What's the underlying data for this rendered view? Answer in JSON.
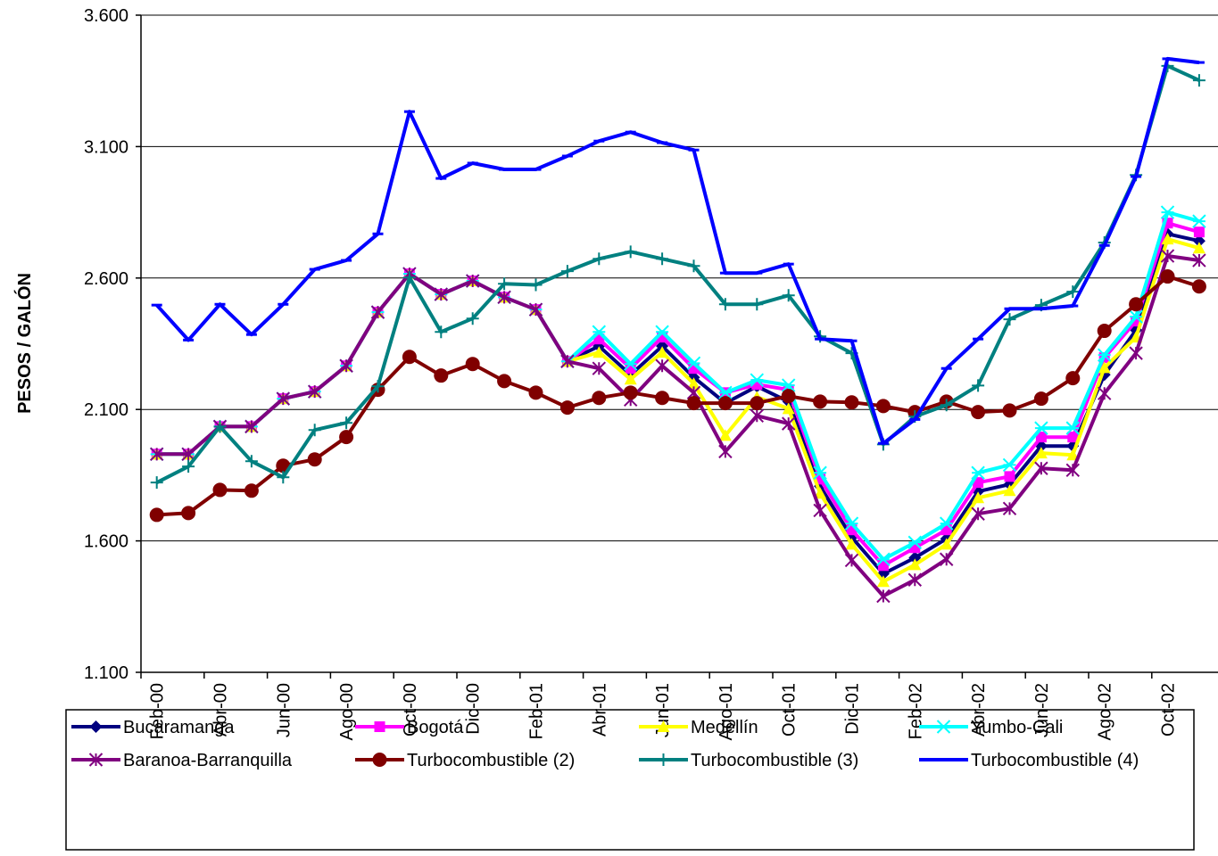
{
  "chart_data": {
    "type": "line",
    "y_label": "PESOS / GALÓN",
    "categories": [
      "Feb-00",
      null,
      "Abr-00",
      null,
      "Jun-00",
      null,
      "Ago-00",
      null,
      "Oct-00",
      null,
      "Dic-00",
      null,
      "Feb-01",
      null,
      "Abr-01",
      null,
      "Jun-01",
      null,
      "Ago-01",
      null,
      "Oct-01",
      null,
      "Dic-01",
      null,
      "Feb-02",
      null,
      "Abr-02",
      null,
      "Jun-02",
      null,
      "Ago-02",
      null,
      "Oct-02",
      null
    ],
    "ylim": [
      1100,
      3600
    ],
    "yticks": [
      {
        "value": 1100,
        "label": "1.100"
      },
      {
        "value": 1600,
        "label": "1.600"
      },
      {
        "value": 2100,
        "label": "2.100"
      },
      {
        "value": 2600,
        "label": "2.600"
      },
      {
        "value": 3100,
        "label": "3.100"
      },
      {
        "value": 3600,
        "label": "3.600"
      }
    ],
    "grid": true,
    "legend": "bottom",
    "series": [
      {
        "name": "Bucaramanga",
        "color": "#000080",
        "marker": "diamond",
        "values": [
          1930,
          1930,
          2035,
          2035,
          2141,
          2168,
          2266,
          2470,
          2616,
          2538,
          2589,
          2527,
          2480,
          2283,
          2341,
          2232,
          2341,
          2222,
          2124,
          2188,
          2130,
          1808,
          1614,
          1475,
          1536,
          1608,
          1788,
          1815,
          1961,
          1961,
          2232,
          2402,
          2768,
          2741
        ]
      },
      {
        "name": "Bogotá",
        "color": "#ff00ff",
        "marker": "square",
        "values": [
          1930,
          1930,
          2035,
          2035,
          2141,
          2168,
          2266,
          2470,
          2616,
          2538,
          2589,
          2527,
          2480,
          2283,
          2368,
          2256,
          2375,
          2256,
          2164,
          2195,
          2175,
          1835,
          1642,
          1506,
          1574,
          1642,
          1822,
          1845,
          1995,
          1995,
          2297,
          2436,
          2809,
          2775
        ]
      },
      {
        "name": "Medellín",
        "color": "#ffff00",
        "marker": "triangle",
        "values": [
          1930,
          1930,
          2035,
          2035,
          2141,
          2168,
          2266,
          2470,
          2616,
          2538,
          2589,
          2527,
          2480,
          2283,
          2317,
          2215,
          2317,
          2198,
          2001,
          2147,
          2103,
          1781,
          1587,
          1445,
          1509,
          1587,
          1764,
          1791,
          1934,
          1927,
          2259,
          2375,
          2748,
          2714
        ]
      },
      {
        "name": "Yumbo-Cali",
        "color": "#00ffff",
        "marker": "asterisk",
        "values": [
          1930,
          1930,
          2035,
          2035,
          2141,
          2168,
          2266,
          2470,
          2616,
          2538,
          2589,
          2527,
          2480,
          2283,
          2395,
          2273,
          2395,
          2276,
          2164,
          2212,
          2192,
          1859,
          1666,
          1530,
          1594,
          1666,
          1859,
          1889,
          2029,
          2029,
          2307,
          2453,
          2850,
          2816
        ]
      },
      {
        "name": "Baranoa-Barranquilla",
        "color": "#800080",
        "marker": "star",
        "values": [
          1930,
          1930,
          2035,
          2035,
          2141,
          2168,
          2266,
          2470,
          2616,
          2538,
          2589,
          2527,
          2480,
          2283,
          2256,
          2137,
          2266,
          2164,
          1940,
          2076,
          2046,
          1716,
          1526,
          1390,
          1452,
          1530,
          1703,
          1723,
          1876,
          1869,
          2161,
          2314,
          2684,
          2667
        ]
      },
      {
        "name": "Turbocombustible (2)",
        "color": "#800000",
        "marker": "circle",
        "values": [
          1699,
          1706,
          1794,
          1791,
          1886,
          1910,
          1995,
          2175,
          2300,
          2229,
          2273,
          2208,
          2164,
          2107,
          2144,
          2164,
          2144,
          2124,
          2124,
          2124,
          2151,
          2130,
          2127,
          2113,
          2090,
          2130,
          2090,
          2096,
          2141,
          2219,
          2399,
          2500,
          2606,
          2568
        ]
      },
      {
        "name": "Turbocombustible (3)",
        "color": "#008080",
        "marker": "plus",
        "values": [
          1822,
          1883,
          2035,
          1903,
          1842,
          2022,
          2049,
          2188,
          2602,
          2395,
          2446,
          2578,
          2574,
          2626,
          2673,
          2700,
          2673,
          2646,
          2500,
          2500,
          2534,
          2378,
          2314,
          1967,
          2073,
          2117,
          2191,
          2443,
          2497,
          2548,
          2735,
          2992,
          3407,
          3352
        ]
      },
      {
        "name": "Turbocombustible (4)",
        "color": "#0000ff",
        "marker": "dash",
        "values": [
          2497,
          2364,
          2500,
          2385,
          2500,
          2633,
          2667,
          2768,
          3233,
          2979,
          3037,
          3013,
          3013,
          3064,
          3121,
          3155,
          3115,
          3087,
          2619,
          2619,
          2653,
          2368,
          2361,
          1971,
          2062,
          2256,
          2368,
          2483,
          2483,
          2494,
          2724,
          2986,
          3434,
          3420
        ]
      }
    ]
  }
}
